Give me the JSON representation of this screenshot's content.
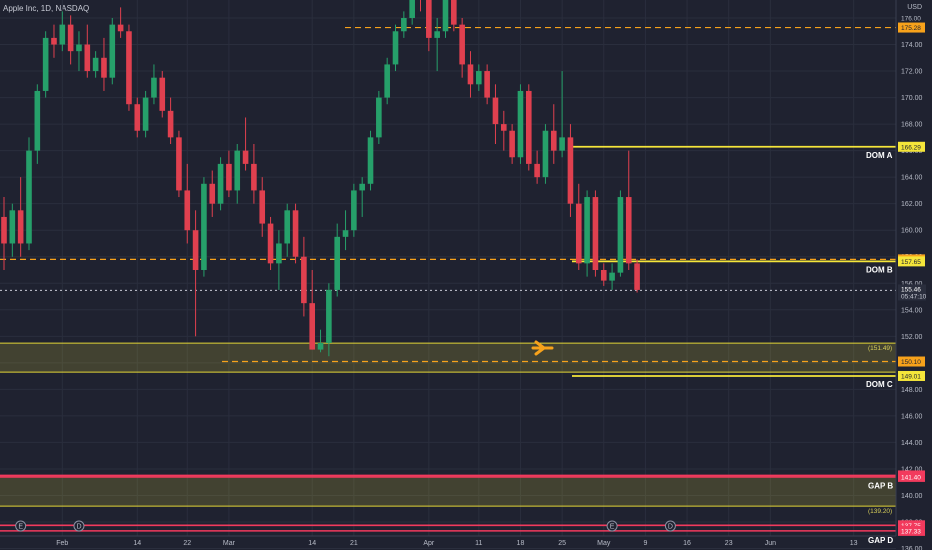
{
  "header": {
    "title": "Apple Inc, 1D, NASDAQ",
    "currency": "USD"
  },
  "chart_data": {
    "type": "candlestick",
    "symbol": "Apple Inc",
    "interval": "1D",
    "exchange": "NASDAQ",
    "y_range": [
      135.8,
      177.8
    ],
    "y_ticks": [
      136,
      138,
      140,
      142,
      144,
      146,
      148,
      150,
      152,
      154,
      156,
      158,
      160,
      162,
      164,
      166,
      168,
      170,
      172,
      174,
      176
    ],
    "x_labels": [
      {
        "label": "Feb",
        "i": 7
      },
      {
        "label": "14",
        "i": 16
      },
      {
        "label": "22",
        "i": 22
      },
      {
        "label": "Mar",
        "i": 27
      },
      {
        "label": "14",
        "i": 37
      },
      {
        "label": "21",
        "i": 42
      },
      {
        "label": "Apr",
        "i": 51
      },
      {
        "label": "11",
        "i": 57
      },
      {
        "label": "18",
        "i": 62
      },
      {
        "label": "25",
        "i": 67
      },
      {
        "label": "May",
        "i": 72
      },
      {
        "label": "9",
        "i": 77
      },
      {
        "label": "16",
        "i": 82
      },
      {
        "label": "23",
        "i": 87
      },
      {
        "label": "Jun",
        "i": 92
      },
      {
        "label": "13",
        "i": 102
      }
    ],
    "candles": [
      {
        "o": 161.0,
        "h": 162.5,
        "l": 157.0,
        "c": 159.0
      },
      {
        "o": 159.0,
        "h": 162.0,
        "l": 158.0,
        "c": 161.5
      },
      {
        "o": 161.5,
        "h": 164.0,
        "l": 158.0,
        "c": 159.0
      },
      {
        "o": 159.0,
        "h": 167.0,
        "l": 158.5,
        "c": 166.0
      },
      {
        "o": 166.0,
        "h": 171.0,
        "l": 165.0,
        "c": 170.5
      },
      {
        "o": 170.5,
        "h": 175.0,
        "l": 170.0,
        "c": 174.5
      },
      {
        "o": 174.5,
        "h": 175.5,
        "l": 173.0,
        "c": 174.0
      },
      {
        "o": 174.0,
        "h": 176.5,
        "l": 173.5,
        "c": 175.5
      },
      {
        "o": 175.5,
        "h": 176.2,
        "l": 172.5,
        "c": 173.5
      },
      {
        "o": 173.5,
        "h": 175.0,
        "l": 172.0,
        "c": 174.0
      },
      {
        "o": 174.0,
        "h": 175.5,
        "l": 171.5,
        "c": 172.0
      },
      {
        "o": 172.0,
        "h": 173.5,
        "l": 171.5,
        "c": 173.0
      },
      {
        "o": 173.0,
        "h": 174.5,
        "l": 170.5,
        "c": 171.5
      },
      {
        "o": 171.5,
        "h": 176.0,
        "l": 171.0,
        "c": 175.5
      },
      {
        "o": 175.5,
        "h": 176.8,
        "l": 174.5,
        "c": 175.0
      },
      {
        "o": 175.0,
        "h": 175.5,
        "l": 169.0,
        "c": 169.5
      },
      {
        "o": 169.5,
        "h": 170.0,
        "l": 167.0,
        "c": 167.5
      },
      {
        "o": 167.5,
        "h": 170.5,
        "l": 167.0,
        "c": 170.0
      },
      {
        "o": 170.0,
        "h": 172.5,
        "l": 169.5,
        "c": 171.5
      },
      {
        "o": 171.5,
        "h": 172.0,
        "l": 168.5,
        "c": 169.0
      },
      {
        "o": 169.0,
        "h": 170.0,
        "l": 166.5,
        "c": 167.0
      },
      {
        "o": 167.0,
        "h": 167.5,
        "l": 162.5,
        "c": 163.0
      },
      {
        "o": 163.0,
        "h": 165.0,
        "l": 159.0,
        "c": 160.0
      },
      {
        "o": 160.0,
        "h": 161.5,
        "l": 152.0,
        "c": 157.0
      },
      {
        "o": 157.0,
        "h": 164.0,
        "l": 156.5,
        "c": 163.5
      },
      {
        "o": 163.5,
        "h": 164.5,
        "l": 161.0,
        "c": 162.0
      },
      {
        "o": 162.0,
        "h": 165.5,
        "l": 161.5,
        "c": 165.0
      },
      {
        "o": 165.0,
        "h": 166.0,
        "l": 162.5,
        "c": 163.0
      },
      {
        "o": 163.0,
        "h": 166.5,
        "l": 162.0,
        "c": 166.0
      },
      {
        "o": 166.0,
        "h": 168.5,
        "l": 164.5,
        "c": 165.0
      },
      {
        "o": 165.0,
        "h": 166.5,
        "l": 162.0,
        "c": 163.0
      },
      {
        "o": 163.0,
        "h": 164.0,
        "l": 159.5,
        "c": 160.5
      },
      {
        "o": 160.5,
        "h": 161.0,
        "l": 157.0,
        "c": 157.5
      },
      {
        "o": 157.5,
        "h": 160.0,
        "l": 155.5,
        "c": 159.0
      },
      {
        "o": 159.0,
        "h": 162.0,
        "l": 158.0,
        "c": 161.5
      },
      {
        "o": 161.5,
        "h": 162.0,
        "l": 157.5,
        "c": 158.0
      },
      {
        "o": 158.0,
        "h": 159.5,
        "l": 153.5,
        "c": 154.5
      },
      {
        "o": 154.5,
        "h": 157.0,
        "l": 151.0,
        "c": 151.0
      },
      {
        "o": 151.0,
        "h": 152.5,
        "l": 150.8,
        "c": 151.5
      },
      {
        "o": 151.5,
        "h": 156.0,
        "l": 150.5,
        "c": 155.5
      },
      {
        "o": 155.5,
        "h": 160.5,
        "l": 155.0,
        "c": 159.5
      },
      {
        "o": 159.5,
        "h": 161.5,
        "l": 158.5,
        "c": 160.0
      },
      {
        "o": 160.0,
        "h": 163.5,
        "l": 159.5,
        "c": 163.0
      },
      {
        "o": 163.0,
        "h": 164.0,
        "l": 161.0,
        "c": 163.5
      },
      {
        "o": 163.5,
        "h": 167.5,
        "l": 163.0,
        "c": 167.0
      },
      {
        "o": 167.0,
        "h": 170.5,
        "l": 166.5,
        "c": 170.0
      },
      {
        "o": 170.0,
        "h": 173.0,
        "l": 169.5,
        "c": 172.5
      },
      {
        "o": 172.5,
        "h": 175.5,
        "l": 172.0,
        "c": 175.0
      },
      {
        "o": 175.0,
        "h": 176.5,
        "l": 174.5,
        "c": 176.0
      },
      {
        "o": 176.0,
        "h": 178.5,
        "l": 175.5,
        "c": 178.0
      },
      {
        "o": 178.0,
        "h": 180.0,
        "l": 176.5,
        "c": 177.5
      },
      {
        "o": 177.5,
        "h": 179.0,
        "l": 173.5,
        "c": 174.5
      },
      {
        "o": 174.5,
        "h": 176.0,
        "l": 172.0,
        "c": 175.0
      },
      {
        "o": 175.0,
        "h": 180.0,
        "l": 174.5,
        "c": 179.0
      },
      {
        "o": 179.0,
        "h": 180.0,
        "l": 175.0,
        "c": 175.5
      },
      {
        "o": 175.5,
        "h": 176.0,
        "l": 171.5,
        "c": 172.5
      },
      {
        "o": 172.5,
        "h": 173.5,
        "l": 170.0,
        "c": 171.0
      },
      {
        "o": 171.0,
        "h": 172.5,
        "l": 170.5,
        "c": 172.0
      },
      {
        "o": 172.0,
        "h": 172.5,
        "l": 169.5,
        "c": 170.0
      },
      {
        "o": 170.0,
        "h": 171.0,
        "l": 166.5,
        "c": 168.0
      },
      {
        "o": 168.0,
        "h": 169.0,
        "l": 166.0,
        "c": 167.5
      },
      {
        "o": 167.5,
        "h": 168.0,
        "l": 165.0,
        "c": 165.5
      },
      {
        "o": 165.5,
        "h": 171.0,
        "l": 165.0,
        "c": 170.5
      },
      {
        "o": 170.5,
        "h": 171.0,
        "l": 164.5,
        "c": 165.0
      },
      {
        "o": 165.0,
        "h": 166.0,
        "l": 163.5,
        "c": 164.0
      },
      {
        "o": 164.0,
        "h": 168.0,
        "l": 163.5,
        "c": 167.5
      },
      {
        "o": 167.5,
        "h": 169.5,
        "l": 165.0,
        "c": 166.0
      },
      {
        "o": 166.0,
        "h": 172.0,
        "l": 165.5,
        "c": 167.0
      },
      {
        "o": 167.0,
        "h": 168.0,
        "l": 161.0,
        "c": 162.0
      },
      {
        "o": 162.0,
        "h": 163.5,
        "l": 157.0,
        "c": 157.5
      },
      {
        "o": 157.5,
        "h": 163.0,
        "l": 156.5,
        "c": 162.5
      },
      {
        "o": 162.5,
        "h": 163.0,
        "l": 156.5,
        "c": 157.0
      },
      {
        "o": 157.0,
        "h": 157.5,
        "l": 155.8,
        "c": 156.2
      },
      {
        "o": 156.2,
        "h": 157.5,
        "l": 155.5,
        "c": 156.8
      },
      {
        "o": 156.8,
        "h": 163.0,
        "l": 156.5,
        "c": 162.5
      },
      {
        "o": 162.5,
        "h": 166.0,
        "l": 157.0,
        "c": 157.5
      },
      {
        "o": 157.5,
        "h": 157.8,
        "l": 155.3,
        "c": 155.5
      }
    ],
    "levels": [
      {
        "name": "DOM A",
        "price": 166.29,
        "color": "#f5e63a",
        "style": "solid"
      },
      {
        "name": "DOM B",
        "price": 157.65,
        "color": "#f5e63a",
        "style": "solid"
      },
      {
        "name": "DOM C",
        "price": 149.01,
        "color": "#f5e63a",
        "style": "solid"
      },
      {
        "name": "",
        "price": 175.28,
        "color": "#f7a21b",
        "style": "dashed"
      },
      {
        "name": "",
        "price": 157.8,
        "color": "#f7a21b",
        "style": "dashed"
      },
      {
        "name": "",
        "price": 150.1,
        "color": "#f7a21b",
        "style": "dashed"
      }
    ],
    "zones": [
      {
        "name": "",
        "top": 151.49,
        "bottom": 149.3,
        "color": "#e2d636"
      },
      {
        "name": "GAP B",
        "top": 141.51,
        "bottom": 139.2,
        "color": "#e2d636"
      }
    ],
    "gap_lines": [
      {
        "name": "",
        "price": 141.51,
        "color": "#f23a5d"
      },
      {
        "name": "",
        "price": 141.4,
        "color": "#f23a5d"
      },
      {
        "name": "",
        "price": 137.75,
        "color": "#f23a5d"
      },
      {
        "name": "GAP D",
        "price": 137.33,
        "color": "#f23a5d"
      }
    ],
    "current_price": 155.46,
    "countdown": "05:47:10",
    "zone_notes": [
      {
        "label": "(151.49)",
        "price": 151.49
      },
      {
        "label": "(139.20)",
        "price": 139.2
      }
    ],
    "price_tags": [
      {
        "label": "176.00",
        "price": 176.0,
        "bg": "#1f2230",
        "fg": "#b8bcc8"
      },
      {
        "label": "175.28",
        "price": 175.28,
        "bg": "#f7a21b",
        "fg": "#1f2230"
      },
      {
        "label": "166.29",
        "price": 166.29,
        "bg": "#f5e63a",
        "fg": "#1f2230"
      },
      {
        "label": "157.80",
        "price": 157.8,
        "bg": "#f7a21b",
        "fg": "#1f2230"
      },
      {
        "label": "157.65",
        "price": 157.65,
        "bg": "#f5e63a",
        "fg": "#1f2230"
      },
      {
        "label": "150.10",
        "price": 150.1,
        "bg": "#f7a21b",
        "fg": "#1f2230"
      },
      {
        "label": "149.01",
        "price": 149.01,
        "bg": "#f5e63a",
        "fg": "#1f2230"
      },
      {
        "label": "141.51",
        "price": 141.51,
        "bg": "#f23a5d",
        "fg": "#ffffff"
      },
      {
        "label": "141.40",
        "price": 141.4,
        "bg": "#f23a5d",
        "fg": "#ffffff"
      },
      {
        "label": "137.75",
        "price": 137.75,
        "bg": "#f23a5d",
        "fg": "#ffffff"
      },
      {
        "label": "137.33",
        "price": 137.33,
        "bg": "#f23a5d",
        "fg": "#ffffff"
      }
    ],
    "event_markers": [
      {
        "label": "E",
        "i": 2
      },
      {
        "label": "D",
        "i": 9
      },
      {
        "label": "E",
        "i": 73
      },
      {
        "label": "D",
        "i": 80
      }
    ],
    "colors": {
      "up": "#26a06a",
      "down": "#e0404f",
      "background": "#1f2230",
      "grid": "#2a2e3d"
    }
  }
}
